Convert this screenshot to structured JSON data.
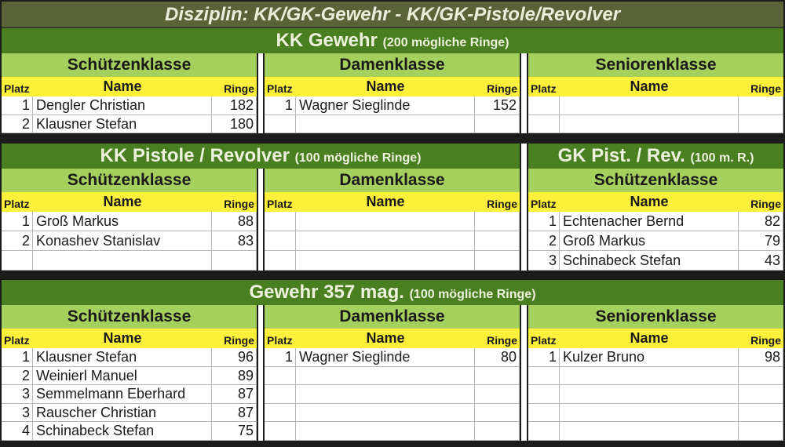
{
  "title": "Disziplin: KK/GK-Gewehr - KK/GK-Pistole/Revolver",
  "columns": {
    "platz": "Platz",
    "name": "Name",
    "ringe": "Ringe"
  },
  "colors": {
    "title_bg": "#5a6237",
    "section_bg": "#4a7f21",
    "class_bg": "#a5d05d",
    "header_row_bg": "#fdf03a"
  },
  "sections": [
    {
      "headers": [
        {
          "main": "KK Gewehr",
          "sub": "(200 mögliche Ringe)"
        }
      ],
      "blocks": [
        {
          "klasse": "Schützenklasse",
          "rows": [
            {
              "platz": "1",
              "name": "Dengler Christian",
              "ringe": "182"
            },
            {
              "platz": "2",
              "name": "Klausner Stefan",
              "ringe": "180"
            }
          ]
        },
        {
          "klasse": "Damenklasse",
          "rows": [
            {
              "platz": "1",
              "name": "Wagner Sieglinde",
              "ringe": "152"
            },
            {
              "platz": "",
              "name": "",
              "ringe": ""
            }
          ]
        },
        {
          "klasse": "Seniorenklasse",
          "rows": [
            {
              "platz": "",
              "name": "",
              "ringe": ""
            },
            {
              "platz": "",
              "name": "",
              "ringe": ""
            }
          ]
        }
      ]
    },
    {
      "headers": [
        {
          "main": "KK Pistole / Revolver",
          "sub": "(100 mögliche Ringe)"
        },
        {
          "main": "GK Pist. / Rev.",
          "sub": "(100 m. R.)"
        }
      ],
      "blocks": [
        {
          "klasse": "Schützenklasse",
          "rows": [
            {
              "platz": "1",
              "name": "Groß Markus",
              "ringe": "88"
            },
            {
              "platz": "2",
              "name": "Konashev Stanislav",
              "ringe": "83"
            },
            {
              "platz": "",
              "name": "",
              "ringe": ""
            }
          ]
        },
        {
          "klasse": "Damenklasse",
          "rows": [
            {
              "platz": "",
              "name": "",
              "ringe": ""
            },
            {
              "platz": "",
              "name": "",
              "ringe": ""
            },
            {
              "platz": "",
              "name": "",
              "ringe": ""
            }
          ]
        },
        {
          "klasse": "Schützenklasse",
          "rows": [
            {
              "platz": "1",
              "name": "Echtenacher Bernd",
              "ringe": "82"
            },
            {
              "platz": "2",
              "name": "Groß Markus",
              "ringe": "79"
            },
            {
              "platz": "3",
              "name": "Schinabeck Stefan",
              "ringe": "43"
            }
          ]
        }
      ]
    },
    {
      "headers": [
        {
          "main": "Gewehr 357 mag.",
          "sub": "(100 mögliche Ringe)"
        }
      ],
      "blocks": [
        {
          "klasse": "Schützenklasse",
          "rows": [
            {
              "platz": "1",
              "name": "Klausner Stefan",
              "ringe": "96"
            },
            {
              "platz": "2",
              "name": "Weinierl Manuel",
              "ringe": "89"
            },
            {
              "platz": "3",
              "name": "Semmelmann Eberhard",
              "ringe": "87"
            },
            {
              "platz": "3",
              "name": "Rauscher Christian",
              "ringe": "87"
            },
            {
              "platz": "4",
              "name": "Schinabeck Stefan",
              "ringe": "75"
            }
          ]
        },
        {
          "klasse": "Damenklasse",
          "rows": [
            {
              "platz": "1",
              "name": "Wagner Sieglinde",
              "ringe": "80"
            },
            {
              "platz": "",
              "name": "",
              "ringe": ""
            },
            {
              "platz": "",
              "name": "",
              "ringe": ""
            },
            {
              "platz": "",
              "name": "",
              "ringe": ""
            },
            {
              "platz": "",
              "name": "",
              "ringe": ""
            }
          ]
        },
        {
          "klasse": "Seniorenklasse",
          "rows": [
            {
              "platz": "1",
              "name": "Kulzer Bruno",
              "ringe": "98"
            },
            {
              "platz": "",
              "name": "",
              "ringe": ""
            },
            {
              "platz": "",
              "name": "",
              "ringe": ""
            },
            {
              "platz": "",
              "name": "",
              "ringe": ""
            },
            {
              "platz": "",
              "name": "",
              "ringe": ""
            }
          ]
        }
      ]
    }
  ]
}
